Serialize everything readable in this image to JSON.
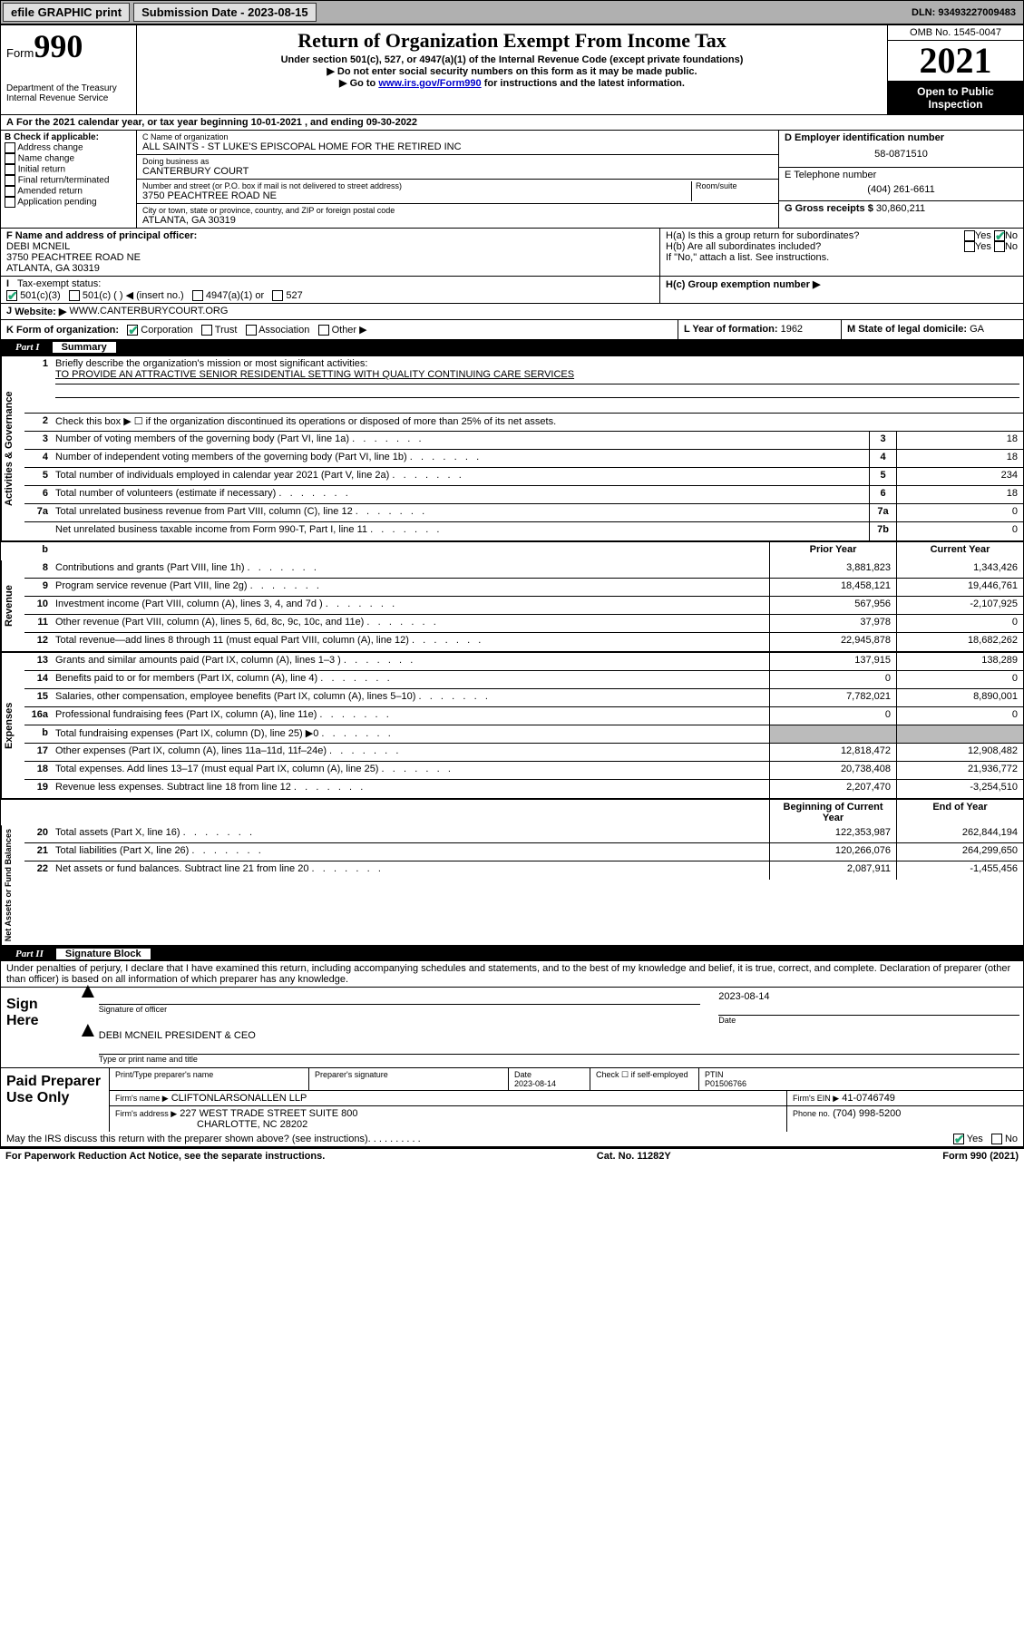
{
  "topbar": {
    "efile": "efile GRAPHIC print",
    "submission_label": "Submission Date - 2023-08-15",
    "dln": "DLN: 93493227009483"
  },
  "header": {
    "form_word": "Form",
    "form_num": "990",
    "dept": "Department of the Treasury\nInternal Revenue Service",
    "title": "Return of Organization Exempt From Income Tax",
    "subtitle": "Under section 501(c), 527, or 4947(a)(1) of the Internal Revenue Code (except private foundations)",
    "note1": "▶ Do not enter social security numbers on this form as it may be made public.",
    "note2_pre": "▶ Go to ",
    "note2_link": "www.irs.gov/Form990",
    "note2_post": " for instructions and the latest information.",
    "omb": "OMB No. 1545-0047",
    "year": "2021",
    "open": "Open to Public Inspection"
  },
  "period": "For the 2021 calendar year, or tax year beginning 10-01-2021   , and ending 09-30-2022",
  "boxB": {
    "label": "B Check if applicable:",
    "opts": [
      "Address change",
      "Name change",
      "Initial return",
      "Final return/terminated",
      "Amended return",
      "Application pending"
    ]
  },
  "boxC": {
    "label": "C Name of organization",
    "name": "ALL SAINTS - ST LUKE'S EPISCOPAL HOME FOR THE RETIRED INC",
    "dba_label": "Doing business as",
    "dba": "CANTERBURY COURT",
    "addr_label": "Number and street (or P.O. box if mail is not delivered to street address)",
    "room_label": "Room/suite",
    "street": "3750 PEACHTREE ROAD NE",
    "city_label": "City or town, state or province, country, and ZIP or foreign postal code",
    "city": "ATLANTA, GA  30319"
  },
  "boxD": {
    "label": "D Employer identification number",
    "ein": "58-0871510"
  },
  "boxE": {
    "label": "E Telephone number",
    "phone": "(404) 261-6611"
  },
  "boxG": {
    "label": "G Gross receipts $",
    "val": "30,860,211"
  },
  "boxF": {
    "label": "F  Name and address of principal officer:",
    "name": "DEBI MCNEIL",
    "street": "3750 PEACHTREE ROAD NE",
    "city": "ATLANTA, GA  30319"
  },
  "boxH": {
    "a": "H(a)  Is this a group return for subordinates?",
    "b": "H(b)  Are all subordinates included?",
    "b_note": "If \"No,\" attach a list. See instructions.",
    "c": "H(c)  Group exemption number ▶"
  },
  "boxI": {
    "label": "Tax-exempt status:",
    "opts": [
      "501(c)(3)",
      "501(c) (  ) ◀ (insert no.)",
      "4947(a)(1) or",
      "527"
    ]
  },
  "boxJ": {
    "label": "Website: ▶",
    "val": "WWW.CANTERBURYCOURT.ORG"
  },
  "boxK": {
    "label": "K Form of organization:",
    "opts": [
      "Corporation",
      "Trust",
      "Association",
      "Other ▶"
    ]
  },
  "boxL": {
    "label": "L Year of formation:",
    "val": "1962"
  },
  "boxM": {
    "label": "M State of legal domicile:",
    "val": "GA"
  },
  "part1": {
    "num": "Part I",
    "title": "Summary",
    "mission_label": "Briefly describe the organization's mission or most significant activities:",
    "mission": "TO PROVIDE AN ATTRACTIVE SENIOR RESIDENTIAL SETTING WITH QUALITY CONTINUING CARE SERVICES",
    "line2": "Check this box ▶ ☐  if the organization discontinued its operations or disposed of more than 25% of its net assets.",
    "lines_gov": [
      {
        "n": "3",
        "d": "Number of voting members of the governing body (Part VI, line 1a)",
        "box": "3",
        "v": "18"
      },
      {
        "n": "4",
        "d": "Number of independent voting members of the governing body (Part VI, line 1b)",
        "box": "4",
        "v": "18"
      },
      {
        "n": "5",
        "d": "Total number of individuals employed in calendar year 2021 (Part V, line 2a)",
        "box": "5",
        "v": "234"
      },
      {
        "n": "6",
        "d": "Total number of volunteers (estimate if necessary)",
        "box": "6",
        "v": "18"
      },
      {
        "n": "7a",
        "d": "Total unrelated business revenue from Part VIII, column (C), line 12",
        "box": "7a",
        "v": "0"
      },
      {
        "n": "",
        "d": "Net unrelated business taxable income from Form 990-T, Part I, line 11",
        "box": "7b",
        "v": "0"
      }
    ],
    "col_headers": {
      "b": "b",
      "prior": "Prior Year",
      "current": "Current Year"
    },
    "revenue": [
      {
        "n": "8",
        "d": "Contributions and grants (Part VIII, line 1h)",
        "p": "3,881,823",
        "c": "1,343,426"
      },
      {
        "n": "9",
        "d": "Program service revenue (Part VIII, line 2g)",
        "p": "18,458,121",
        "c": "19,446,761"
      },
      {
        "n": "10",
        "d": "Investment income (Part VIII, column (A), lines 3, 4, and 7d )",
        "p": "567,956",
        "c": "-2,107,925"
      },
      {
        "n": "11",
        "d": "Other revenue (Part VIII, column (A), lines 5, 6d, 8c, 9c, 10c, and 11e)",
        "p": "37,978",
        "c": "0"
      },
      {
        "n": "12",
        "d": "Total revenue—add lines 8 through 11 (must equal Part VIII, column (A), line 12)",
        "p": "22,945,878",
        "c": "18,682,262"
      }
    ],
    "expenses": [
      {
        "n": "13",
        "d": "Grants and similar amounts paid (Part IX, column (A), lines 1–3 )",
        "p": "137,915",
        "c": "138,289"
      },
      {
        "n": "14",
        "d": "Benefits paid to or for members (Part IX, column (A), line 4)",
        "p": "0",
        "c": "0"
      },
      {
        "n": "15",
        "d": "Salaries, other compensation, employee benefits (Part IX, column (A), lines 5–10)",
        "p": "7,782,021",
        "c": "8,890,001"
      },
      {
        "n": "16a",
        "d": "Professional fundraising fees (Part IX, column (A), line 11e)",
        "p": "0",
        "c": "0"
      },
      {
        "n": "b",
        "d": "Total fundraising expenses (Part IX, column (D), line 25) ▶0",
        "p": "",
        "c": "",
        "grey": true
      },
      {
        "n": "17",
        "d": "Other expenses (Part IX, column (A), lines 11a–11d, 11f–24e)",
        "p": "12,818,472",
        "c": "12,908,482"
      },
      {
        "n": "18",
        "d": "Total expenses. Add lines 13–17 (must equal Part IX, column (A), line 25)",
        "p": "20,738,408",
        "c": "21,936,772"
      },
      {
        "n": "19",
        "d": "Revenue less expenses. Subtract line 18 from line 12",
        "p": "2,207,470",
        "c": "-3,254,510"
      }
    ],
    "net_headers": {
      "prior": "Beginning of Current Year",
      "current": "End of Year"
    },
    "net": [
      {
        "n": "20",
        "d": "Total assets (Part X, line 16)",
        "p": "122,353,987",
        "c": "262,844,194"
      },
      {
        "n": "21",
        "d": "Total liabilities (Part X, line 26)",
        "p": "120,266,076",
        "c": "264,299,650"
      },
      {
        "n": "22",
        "d": "Net assets or fund balances. Subtract line 21 from line 20",
        "p": "2,087,911",
        "c": "-1,455,456"
      }
    ]
  },
  "part2": {
    "num": "Part II",
    "title": "Signature Block",
    "decl": "Under penalties of perjury, I declare that I have examined this return, including accompanying schedules and statements, and to the best of my knowledge and belief, it is true, correct, and complete. Declaration of preparer (other than officer) is based on all information of which preparer has any knowledge."
  },
  "sign": {
    "here": "Sign Here",
    "sig_label": "Signature of officer",
    "date": "2023-08-14",
    "date_label": "Date",
    "name": "DEBI MCNEIL PRESIDENT & CEO",
    "name_label": "Type or print name and title"
  },
  "prep": {
    "title": "Paid Preparer Use Only",
    "h1": "Print/Type preparer's name",
    "h2": "Preparer's signature",
    "h3": "Date",
    "date": "2023-08-14",
    "h4": "Check ☐ if self-employed",
    "h5": "PTIN",
    "ptin": "P01506766",
    "firm_label": "Firm's name    ▶",
    "firm": "CLIFTONLARSONALLEN LLP",
    "firm_ein_label": "Firm's EIN ▶",
    "firm_ein": "41-0746749",
    "addr_label": "Firm's address ▶",
    "addr1": "227 WEST TRADE STREET SUITE 800",
    "addr2": "CHARLOTTE, NC  28202",
    "phone_label": "Phone no.",
    "phone": "(704) 998-5200"
  },
  "discuss": "May the IRS discuss this return with the preparer shown above? (see instructions)",
  "footer": {
    "left": "For Paperwork Reduction Act Notice, see the separate instructions.",
    "mid": "Cat. No. 11282Y",
    "right": "Form 990 (2021)"
  },
  "yes": "Yes",
  "no": "No"
}
